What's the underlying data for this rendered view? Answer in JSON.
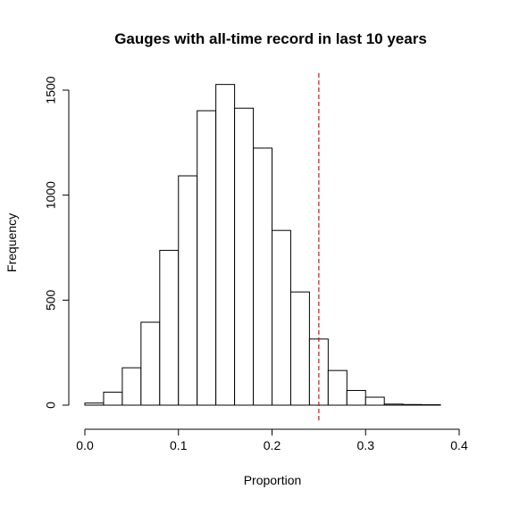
{
  "chart_data": {
    "type": "bar",
    "title": "Gauges with all-time record in last 10 years",
    "xlabel": "Proportion",
    "ylabel": "Frequency",
    "xlim": [
      0.0,
      0.4
    ],
    "ylim": [
      0,
      1500
    ],
    "x_ticks": [
      "0.0",
      "0.1",
      "0.2",
      "0.3",
      "0.4"
    ],
    "y_ticks": [
      "0",
      "500",
      "1000",
      "1500"
    ],
    "bins": [
      {
        "start": 0.0,
        "end": 0.02,
        "value": 10
      },
      {
        "start": 0.02,
        "end": 0.04,
        "value": 62
      },
      {
        "start": 0.04,
        "end": 0.06,
        "value": 178
      },
      {
        "start": 0.06,
        "end": 0.08,
        "value": 395
      },
      {
        "start": 0.08,
        "end": 0.1,
        "value": 737
      },
      {
        "start": 0.1,
        "end": 0.12,
        "value": 1092
      },
      {
        "start": 0.12,
        "end": 0.14,
        "value": 1402
      },
      {
        "start": 0.14,
        "end": 0.16,
        "value": 1527
      },
      {
        "start": 0.16,
        "end": 0.18,
        "value": 1414
      },
      {
        "start": 0.18,
        "end": 0.2,
        "value": 1224
      },
      {
        "start": 0.2,
        "end": 0.22,
        "value": 832
      },
      {
        "start": 0.22,
        "end": 0.24,
        "value": 539
      },
      {
        "start": 0.24,
        "end": 0.26,
        "value": 315
      },
      {
        "start": 0.26,
        "end": 0.28,
        "value": 165
      },
      {
        "start": 0.28,
        "end": 0.3,
        "value": 70
      },
      {
        "start": 0.3,
        "end": 0.32,
        "value": 38
      },
      {
        "start": 0.32,
        "end": 0.34,
        "value": 5
      },
      {
        "start": 0.34,
        "end": 0.36,
        "value": 3
      },
      {
        "start": 0.36,
        "end": 0.38,
        "value": 2
      }
    ],
    "reference_line": {
      "x": 0.25,
      "color": "#b22222",
      "style": "dashed"
    },
    "grid": false,
    "legend": "none"
  }
}
